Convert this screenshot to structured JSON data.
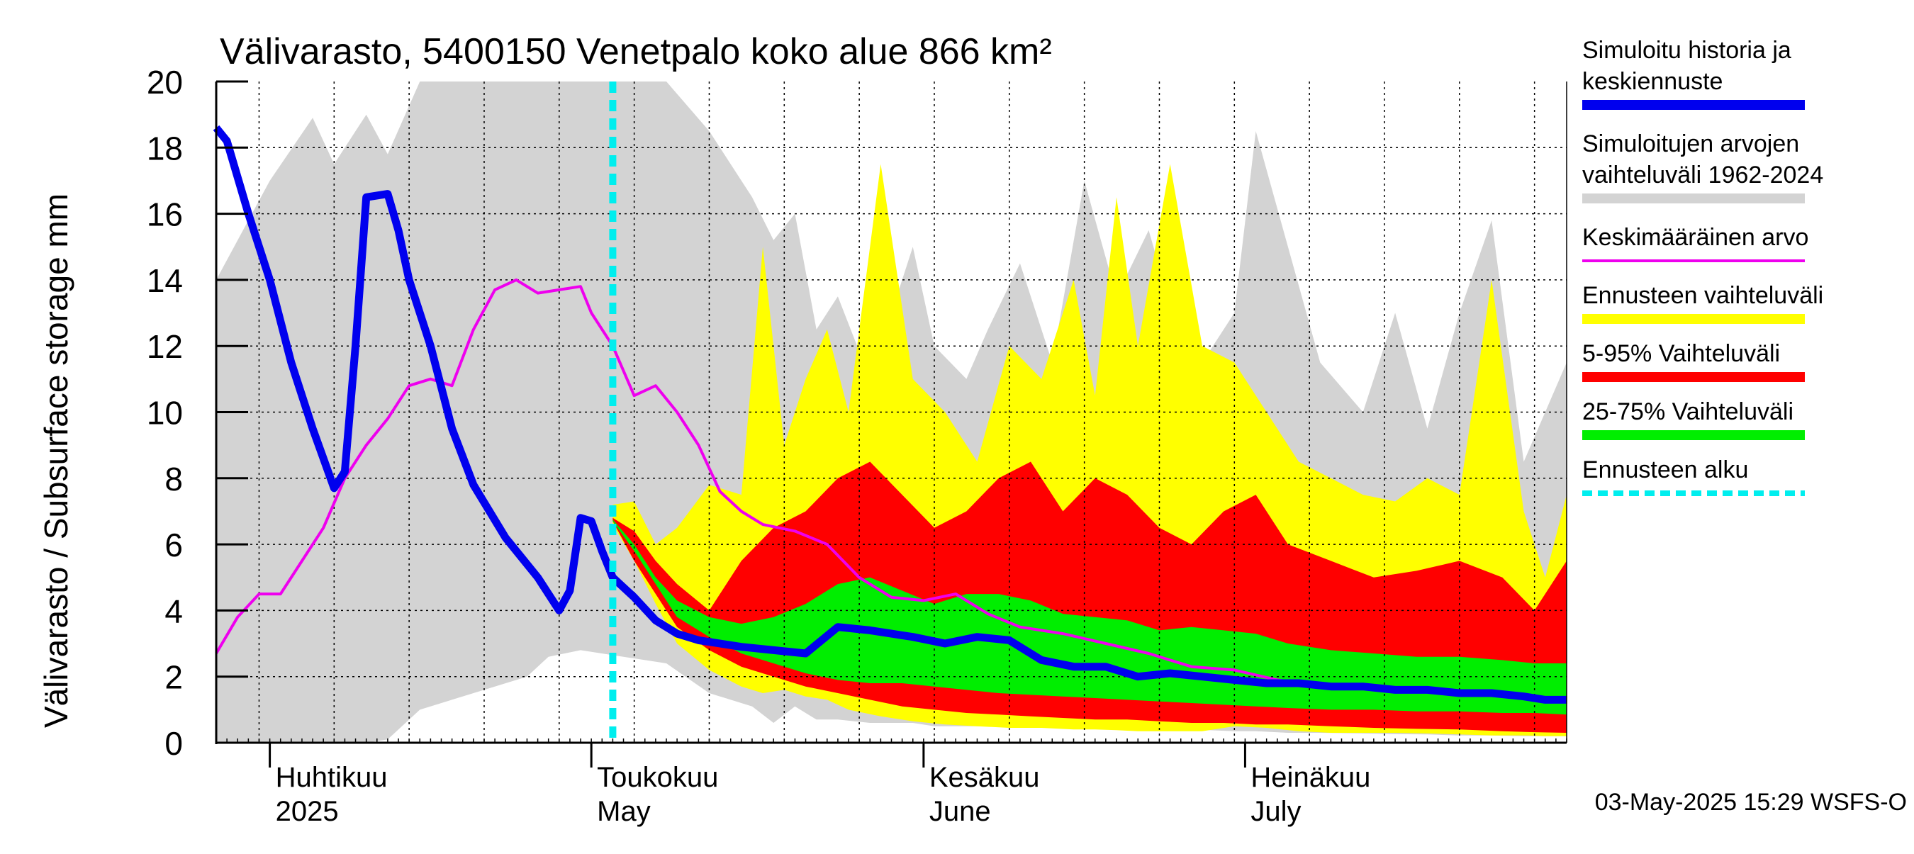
{
  "chart_data": {
    "type": "area",
    "title": "Välivarasto, 5400150 Venetpalo koko alue 866 km²",
    "ylabel": "Välivarasto / Subsurface storage  mm",
    "ylim": [
      0,
      20
    ],
    "yticks": [
      0,
      2,
      4,
      6,
      8,
      10,
      12,
      14,
      16,
      18,
      20
    ],
    "x_range": [
      "2025-03-27",
      "2025-07-31"
    ],
    "forecast_start": "2025-05-03",
    "grid": true,
    "legend_position": "right",
    "month_labels": [
      {
        "date": "2025-04-01",
        "fi": "Huhtikuu",
        "en": "2025"
      },
      {
        "date": "2025-05-01",
        "fi": "Toukokuu",
        "en": "May"
      },
      {
        "date": "2025-06-01",
        "fi": "Kesäkuu",
        "en": "June"
      },
      {
        "date": "2025-07-01",
        "fi": "Heinäkuu",
        "en": "July"
      }
    ],
    "footer": "03-May-2025 15:29 WSFS-O",
    "legend": [
      {
        "label": "Simuloitu historia ja keskiennuste",
        "color": "#0000ee",
        "style": "thick"
      },
      {
        "label": "Simuloitujen arvojen vaihteluväli 1962-2024",
        "color": "#d3d3d3",
        "style": "thick"
      },
      {
        "label": "Keskimääräinen arvo",
        "color": "#ee00ee",
        "style": "thin"
      },
      {
        "label": "Ennusteen vaihteluväli",
        "color": "#ffff00",
        "style": "thick"
      },
      {
        "label": "5-95% Vaihteluväli",
        "color": "#ff0000",
        "style": "thick"
      },
      {
        "label": "25-75% Vaihteluväli",
        "color": "#00ee00",
        "style": "thick"
      },
      {
        "label": "Ennusteen alku",
        "color": "#00eeee",
        "style": "dashed"
      }
    ],
    "series": [
      {
        "name": "Simuloitujen arvojen vaihteluväli 1962-2024",
        "kind": "band",
        "color": "#d3d3d3",
        "x": [
          "2025-03-27",
          "2025-04-01",
          "2025-04-05",
          "2025-04-07",
          "2025-04-10",
          "2025-04-12",
          "2025-04-15",
          "2025-04-20",
          "2025-04-25",
          "2025-04-27",
          "2025-04-30",
          "2025-05-04",
          "2025-05-08",
          "2025-05-12",
          "2025-05-16",
          "2025-05-18",
          "2025-05-20",
          "2025-05-22",
          "2025-05-24",
          "2025-05-27",
          "2025-05-31",
          "2025-06-02",
          "2025-06-05",
          "2025-06-07",
          "2025-06-10",
          "2025-06-13",
          "2025-06-16",
          "2025-06-19",
          "2025-06-22",
          "2025-06-26",
          "2025-06-30",
          "2025-07-02",
          "2025-07-05",
          "2025-07-08",
          "2025-07-12",
          "2025-07-15",
          "2025-07-18",
          "2025-07-21",
          "2025-07-24",
          "2025-07-27",
          "2025-07-31"
        ],
        "upper": [
          14.0,
          17.0,
          18.9,
          17.5,
          19.0,
          17.8,
          20.0,
          20.0,
          20.0,
          20.0,
          20.0,
          20.0,
          20.0,
          18.5,
          16.5,
          15.2,
          16.0,
          12.5,
          13.5,
          11.0,
          15.0,
          12.0,
          11.0,
          12.5,
          14.5,
          11.5,
          17.0,
          13.5,
          15.5,
          11.0,
          13.0,
          18.5,
          15.0,
          11.5,
          10.0,
          13.0,
          9.5,
          13.0,
          15.8,
          8.5,
          11.5
        ],
        "lower": [
          0.0,
          0.0,
          0.0,
          0.0,
          0.0,
          0.1,
          1.0,
          1.5,
          2.0,
          2.6,
          2.8,
          2.6,
          2.4,
          1.5,
          1.1,
          0.6,
          1.1,
          0.7,
          0.7,
          0.6,
          0.6,
          0.5,
          0.5,
          0.5,
          0.5,
          0.45,
          0.45,
          0.42,
          0.4,
          0.4,
          0.35,
          0.35,
          0.3,
          0.3,
          0.28,
          0.26,
          0.25,
          0.22,
          0.22,
          0.2,
          0.2
        ]
      },
      {
        "name": "Ennusteen vaihteluväli",
        "kind": "band",
        "color": "#ffff00",
        "x": [
          "2025-05-03",
          "2025-05-05",
          "2025-05-07",
          "2025-05-09",
          "2025-05-12",
          "2025-05-15",
          "2025-05-17",
          "2025-05-19",
          "2025-05-21",
          "2025-05-23",
          "2025-05-25",
          "2025-05-28",
          "2025-05-31",
          "2025-06-03",
          "2025-06-06",
          "2025-06-09",
          "2025-06-12",
          "2025-06-15",
          "2025-06-17",
          "2025-06-19",
          "2025-06-21",
          "2025-06-24",
          "2025-06-27",
          "2025-06-30",
          "2025-07-03",
          "2025-07-06",
          "2025-07-09",
          "2025-07-12",
          "2025-07-15",
          "2025-07-18",
          "2025-07-21",
          "2025-07-24",
          "2025-07-27",
          "2025-07-29",
          "2025-07-31"
        ],
        "upper": [
          7.2,
          7.3,
          6.0,
          6.5,
          7.8,
          7.5,
          15.0,
          9.0,
          11.0,
          12.5,
          10.0,
          17.5,
          11.0,
          10.0,
          8.5,
          12.0,
          11.0,
          14.0,
          10.5,
          16.5,
          12.0,
          17.5,
          12.0,
          11.5,
          10.0,
          8.5,
          8.0,
          7.5,
          7.3,
          8.0,
          7.5,
          14.0,
          7.0,
          5.0,
          7.5
        ],
        "lower": [
          6.6,
          5.5,
          4.2,
          3.0,
          2.2,
          1.7,
          1.5,
          1.6,
          1.4,
          1.3,
          1.0,
          0.8,
          0.65,
          0.55,
          0.5,
          0.45,
          0.45,
          0.4,
          0.4,
          0.38,
          0.35,
          0.35,
          0.35,
          0.5,
          0.45,
          0.35,
          0.3,
          0.3,
          0.3,
          0.28,
          0.25,
          0.22,
          0.22,
          0.2,
          0.2
        ]
      },
      {
        "name": "5-95% Vaihteluväli",
        "kind": "band",
        "color": "#ff0000",
        "x": [
          "2025-05-03",
          "2025-05-05",
          "2025-05-07",
          "2025-05-09",
          "2025-05-12",
          "2025-05-15",
          "2025-05-18",
          "2025-05-21",
          "2025-05-24",
          "2025-05-27",
          "2025-05-30",
          "2025-06-02",
          "2025-06-05",
          "2025-06-08",
          "2025-06-11",
          "2025-06-14",
          "2025-06-17",
          "2025-06-20",
          "2025-06-23",
          "2025-06-26",
          "2025-06-29",
          "2025-07-02",
          "2025-07-05",
          "2025-07-09",
          "2025-07-13",
          "2025-07-17",
          "2025-07-21",
          "2025-07-25",
          "2025-07-28",
          "2025-07-31"
        ],
        "upper": [
          6.8,
          6.4,
          5.5,
          4.8,
          4.0,
          5.5,
          6.5,
          7.0,
          8.0,
          8.5,
          7.5,
          6.5,
          7.0,
          8.0,
          8.5,
          7.0,
          8.0,
          7.5,
          6.5,
          6.0,
          7.0,
          7.5,
          6.0,
          5.5,
          5.0,
          5.2,
          5.5,
          5.0,
          4.0,
          5.5
        ],
        "lower": [
          6.7,
          5.5,
          4.5,
          3.5,
          2.8,
          2.3,
          2.0,
          1.7,
          1.5,
          1.3,
          1.1,
          1.0,
          0.9,
          0.85,
          0.8,
          0.75,
          0.7,
          0.7,
          0.65,
          0.6,
          0.6,
          0.55,
          0.55,
          0.5,
          0.45,
          0.42,
          0.4,
          0.35,
          0.32,
          0.3
        ]
      },
      {
        "name": "25-75% Vaihteluväli",
        "kind": "band",
        "color": "#00ee00",
        "x": [
          "2025-05-03",
          "2025-05-05",
          "2025-05-07",
          "2025-05-09",
          "2025-05-12",
          "2025-05-15",
          "2025-05-18",
          "2025-05-21",
          "2025-05-24",
          "2025-05-27",
          "2025-05-30",
          "2025-06-02",
          "2025-06-05",
          "2025-06-08",
          "2025-06-11",
          "2025-06-14",
          "2025-06-17",
          "2025-06-20",
          "2025-06-23",
          "2025-06-26",
          "2025-06-29",
          "2025-07-02",
          "2025-07-05",
          "2025-07-09",
          "2025-07-13",
          "2025-07-17",
          "2025-07-21",
          "2025-07-25",
          "2025-07-28",
          "2025-07-31"
        ],
        "upper": [
          6.75,
          6.0,
          5.0,
          4.3,
          3.8,
          3.6,
          3.8,
          4.2,
          4.8,
          5.0,
          4.6,
          4.2,
          4.5,
          4.5,
          4.3,
          3.9,
          3.8,
          3.7,
          3.4,
          3.5,
          3.4,
          3.3,
          3.0,
          2.8,
          2.7,
          2.6,
          2.6,
          2.5,
          2.4,
          2.4
        ],
        "lower": [
          6.7,
          5.8,
          4.8,
          3.8,
          3.2,
          2.7,
          2.4,
          2.1,
          1.9,
          1.8,
          1.8,
          1.7,
          1.6,
          1.5,
          1.45,
          1.4,
          1.35,
          1.3,
          1.25,
          1.2,
          1.15,
          1.1,
          1.05,
          1.0,
          1.0,
          0.95,
          0.95,
          0.9,
          0.9,
          0.85
        ]
      },
      {
        "name": "Keskimääräinen arvo",
        "kind": "line",
        "color": "#ee00ee",
        "x": [
          "2025-03-27",
          "2025-03-29",
          "2025-03-31",
          "2025-04-02",
          "2025-04-04",
          "2025-04-06",
          "2025-04-08",
          "2025-04-10",
          "2025-04-12",
          "2025-04-14",
          "2025-04-16",
          "2025-04-18",
          "2025-04-20",
          "2025-04-22",
          "2025-04-24",
          "2025-04-26",
          "2025-04-28",
          "2025-04-30",
          "2025-05-01",
          "2025-05-03",
          "2025-05-05",
          "2025-05-07",
          "2025-05-09",
          "2025-05-11",
          "2025-05-13",
          "2025-05-15",
          "2025-05-17",
          "2025-05-20",
          "2025-05-23",
          "2025-05-26",
          "2025-05-29",
          "2025-06-01",
          "2025-06-04",
          "2025-06-07",
          "2025-06-10",
          "2025-06-14",
          "2025-06-18",
          "2025-06-22",
          "2025-06-26",
          "2025-06-30",
          "2025-07-04",
          "2025-07-08",
          "2025-07-12",
          "2025-07-16",
          "2025-07-20",
          "2025-07-24",
          "2025-07-28",
          "2025-07-31"
        ],
        "y": [
          2.7,
          3.8,
          4.5,
          4.5,
          5.5,
          6.5,
          8.0,
          9.0,
          9.8,
          10.8,
          11.0,
          10.8,
          12.5,
          13.7,
          14.0,
          13.6,
          13.7,
          13.8,
          13.0,
          12.0,
          10.5,
          10.8,
          10.0,
          9.0,
          7.6,
          7.0,
          6.6,
          6.4,
          6.0,
          5.0,
          4.4,
          4.3,
          4.5,
          3.9,
          3.5,
          3.3,
          3.0,
          2.7,
          2.3,
          2.2,
          1.9,
          1.7,
          1.7,
          1.6,
          1.6,
          1.5,
          1.4,
          1.3
        ]
      },
      {
        "name": "Simuloitu historia ja keskiennuste",
        "kind": "line",
        "color": "#0000ee",
        "x": [
          "2025-03-27",
          "2025-03-28",
          "2025-03-30",
          "2025-04-01",
          "2025-04-03",
          "2025-04-05",
          "2025-04-07",
          "2025-04-08",
          "2025-04-09",
          "2025-04-10",
          "2025-04-12",
          "2025-04-13",
          "2025-04-14",
          "2025-04-16",
          "2025-04-18",
          "2025-04-20",
          "2025-04-23",
          "2025-04-26",
          "2025-04-28",
          "2025-04-29",
          "2025-04-30",
          "2025-05-01",
          "2025-05-02",
          "2025-05-03",
          "2025-05-05",
          "2025-05-07",
          "2025-05-09",
          "2025-05-11",
          "2025-05-13",
          "2025-05-15",
          "2025-05-18",
          "2025-05-21",
          "2025-05-24",
          "2025-05-27",
          "2025-05-29",
          "2025-05-31",
          "2025-06-03",
          "2025-06-06",
          "2025-06-09",
          "2025-06-12",
          "2025-06-15",
          "2025-06-18",
          "2025-06-21",
          "2025-06-24",
          "2025-06-27",
          "2025-06-30",
          "2025-07-03",
          "2025-07-06",
          "2025-07-09",
          "2025-07-12",
          "2025-07-15",
          "2025-07-18",
          "2025-07-21",
          "2025-07-24",
          "2025-07-27",
          "2025-07-29",
          "2025-07-31"
        ],
        "y": [
          18.6,
          18.2,
          16.0,
          14.0,
          11.5,
          9.5,
          7.7,
          8.2,
          12.0,
          16.5,
          16.6,
          15.5,
          14.0,
          12.0,
          9.5,
          7.8,
          6.2,
          5.0,
          4.0,
          4.6,
          6.8,
          6.7,
          5.8,
          5.0,
          4.4,
          3.7,
          3.3,
          3.1,
          3.0,
          2.9,
          2.8,
          2.7,
          3.5,
          3.4,
          3.3,
          3.2,
          3.0,
          3.2,
          3.1,
          2.5,
          2.3,
          2.3,
          2.0,
          2.1,
          2.0,
          1.9,
          1.8,
          1.8,
          1.7,
          1.7,
          1.6,
          1.6,
          1.5,
          1.5,
          1.4,
          1.3,
          1.3
        ]
      }
    ]
  }
}
